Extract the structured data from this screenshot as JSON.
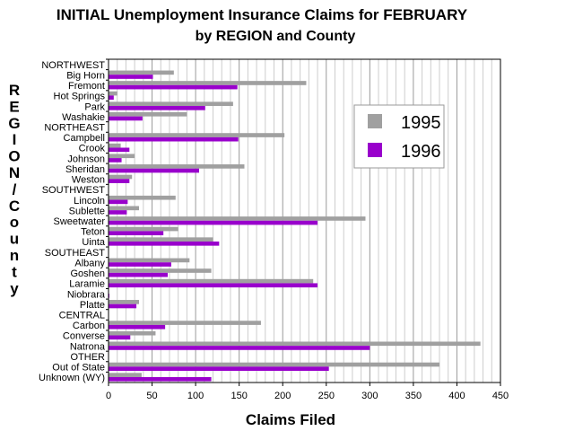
{
  "chart_data": {
    "type": "bar",
    "orientation": "horizontal",
    "title": "INITIAL Unemployment Insurance Claims for FEBRUARY",
    "subtitle": "by REGION and County",
    "xlabel": "Claims Filed",
    "ylabel": "REGION/County",
    "xlim": [
      0,
      450
    ],
    "xticks": [
      "0",
      "50",
      "100",
      "150",
      "200",
      "250",
      "300",
      "350",
      "400",
      "450"
    ],
    "grid": true,
    "legend_position": "right",
    "categories": [
      "NORTHWEST",
      "Big Horn",
      "Fremont",
      "Hot Springs",
      "Park",
      "Washakie",
      "NORTHEAST",
      "Campbell",
      "Crook",
      "Johnson",
      "Sheridan",
      "Weston",
      "SOUTHWEST",
      "Lincoln",
      "Sublette",
      "Sweetwater",
      "Teton",
      "Uinta",
      "SOUTHEAST",
      "Albany",
      "Goshen",
      "Laramie",
      "Niobrara",
      "Platte",
      "CENTRAL",
      "Carbon",
      "Converse",
      "Natrona",
      "OTHER",
      "Out of State",
      "Unknown (WY)"
    ],
    "series": [
      {
        "name": "1995",
        "color": "#a0a0a0",
        "values": [
          0,
          75,
          227,
          10,
          143,
          90,
          0,
          202,
          14,
          30,
          156,
          27,
          0,
          77,
          35,
          295,
          80,
          120,
          0,
          93,
          118,
          235,
          0,
          35,
          0,
          175,
          54,
          427,
          0,
          380,
          38
        ]
      },
      {
        "name": "1996",
        "color": "#9900cc",
        "values": [
          0,
          51,
          148,
          6,
          111,
          39,
          0,
          149,
          24,
          15,
          104,
          24,
          0,
          22,
          21,
          240,
          63,
          127,
          0,
          72,
          68,
          240,
          1,
          32,
          0,
          65,
          25,
          300,
          0,
          253,
          118
        ]
      }
    ]
  }
}
